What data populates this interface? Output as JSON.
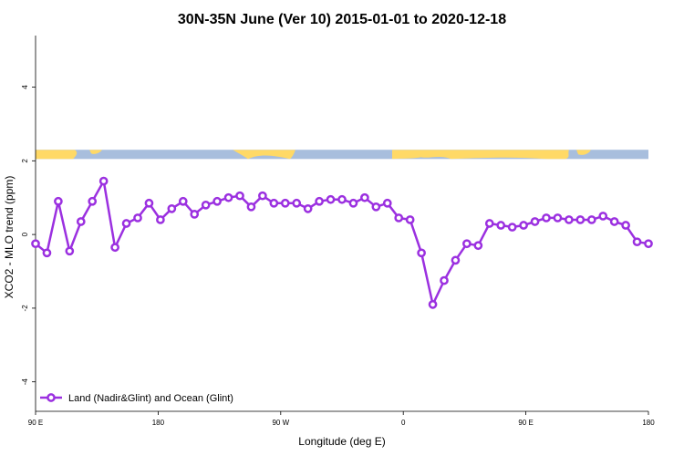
{
  "chart_data": {
    "type": "line",
    "title": "30N-35N June (Ver 10)   2015-01-01 to 2020-12-18",
    "xlabel": "Longitude (deg E)",
    "ylabel": "XCO2 - MLO trend (ppm)",
    "xlim": [
      -90,
      180
    ],
    "ylim": [
      -4.8,
      5.4
    ],
    "x_ticks": [
      {
        "value": -90,
        "label": "90 E"
      },
      {
        "value": -36,
        "label": "180"
      },
      {
        "value": 18,
        "label": "90 W"
      },
      {
        "value": 72,
        "label": "0"
      },
      {
        "value": 126,
        "label": "90 E"
      },
      {
        "value": 180,
        "label": "180"
      }
    ],
    "y_ticks": [
      {
        "value": -4,
        "label": "-4"
      },
      {
        "value": -2,
        "label": "-2"
      },
      {
        "value": 0,
        "label": "0"
      },
      {
        "value": 2,
        "label": "2"
      },
      {
        "value": 4,
        "label": "4"
      }
    ],
    "grid": false,
    "legend_position": "bottom-left",
    "series": [
      {
        "name": "Land (Nadir&Glint) and Ocean (Glint)",
        "color": "#9b30e0",
        "x": [
          -90,
          -85,
          -80,
          -75,
          -70,
          -65,
          -60,
          -55,
          -50,
          -45,
          -40,
          -35,
          -30,
          -25,
          -20,
          -15,
          -10,
          -5,
          0,
          5,
          10,
          15,
          20,
          25,
          30,
          35,
          40,
          45,
          50,
          55,
          60,
          65,
          70,
          75,
          80,
          85,
          90,
          95,
          100,
          105,
          110,
          115,
          120,
          125,
          130,
          135,
          140,
          145,
          150,
          155,
          160,
          165,
          170,
          175,
          180
        ],
        "y": [
          -0.25,
          -0.5,
          0.9,
          -0.45,
          0.35,
          0.9,
          1.45,
          -0.35,
          0.3,
          0.45,
          0.85,
          0.4,
          0.7,
          0.9,
          0.55,
          0.8,
          0.9,
          1.0,
          1.05,
          0.75,
          1.05,
          0.85,
          0.85,
          0.85,
          0.7,
          0.9,
          0.95,
          0.95,
          0.85,
          1.0,
          0.75,
          0.85,
          0.45,
          0.4,
          -0.5,
          -1.9,
          -1.25,
          -0.7,
          -0.25,
          -0.3,
          0.3,
          0.25,
          0.2,
          0.25,
          0.35,
          0.45,
          0.45,
          0.4,
          0.4,
          0.4,
          0.5,
          0.35,
          0.25,
          -0.2,
          -0.25
        ]
      }
    ],
    "surface_band": {
      "y_range": [
        2.05,
        2.3
      ],
      "land_color": "#ffd966",
      "ocean_color": "#a8bedd"
    }
  }
}
